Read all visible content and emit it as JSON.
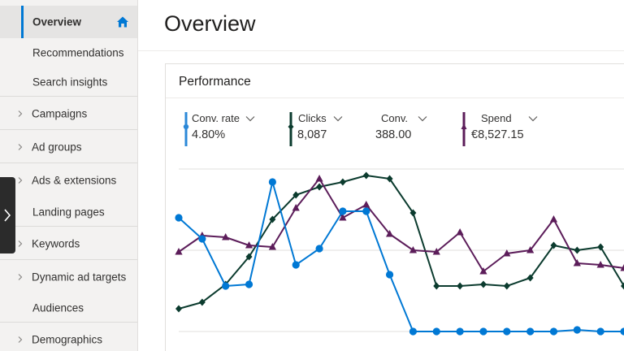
{
  "sidebar": {
    "items": [
      {
        "label": "Overview"
      },
      {
        "label": "Recommendations"
      },
      {
        "label": "Search insights"
      },
      {
        "label": "Campaigns"
      },
      {
        "label": "Ad groups"
      },
      {
        "label": "Ads & extensions"
      },
      {
        "label": "Landing pages"
      },
      {
        "label": "Keywords"
      },
      {
        "label": "Dynamic ad targets"
      },
      {
        "label": "Audiences"
      },
      {
        "label": "Demographics"
      }
    ]
  },
  "page": {
    "title": "Overview"
  },
  "performance": {
    "title": "Performance",
    "metrics": [
      {
        "label": "Conv. rate",
        "value": "4.80%",
        "color": "#2b88d8"
      },
      {
        "label": "Clicks",
        "value": "8,087",
        "color": "#0b3b2e"
      },
      {
        "label": "Conv.",
        "value": "388.00",
        "color": "#ffffff"
      },
      {
        "label": "Spend",
        "value": "€8,527.15",
        "color": "#5c1d5a"
      }
    ]
  },
  "chart_data": {
    "type": "line",
    "x": [
      1,
      2,
      3,
      4,
      5,
      6,
      7,
      8,
      9,
      10,
      11,
      12,
      13,
      14,
      15,
      16,
      17,
      18,
      19,
      20,
      21,
      22,
      23,
      24,
      25,
      26,
      27,
      28,
      29,
      30
    ],
    "grid": true,
    "series": [
      {
        "values": [
          0.7,
          0.57,
          0.28,
          0.29,
          0.92,
          0.41,
          0.51,
          0.74,
          0.74,
          0.35,
          0.0,
          0.0,
          0.0,
          0.0,
          0.0,
          0.0,
          0.0,
          0.01,
          0.0,
          0.0,
          0.0,
          0.0,
          0.0,
          0.0,
          0.0,
          0.0,
          0.0,
          0.0,
          0.0,
          0.0
        ],
        "color": "#0078d4",
        "marker": "circle"
      },
      {
        "values": [
          0.14,
          0.18,
          0.29,
          0.46,
          0.69,
          0.84,
          0.89,
          0.92,
          0.96,
          0.94,
          0.73,
          0.28,
          0.28,
          0.29,
          0.28,
          0.33,
          0.53,
          0.5,
          0.52,
          0.28,
          0.31,
          0.52,
          0.54,
          0.46,
          0.33,
          0.32,
          0.27,
          0.3,
          0.3,
          0.35
        ],
        "color": "#0b3b2e",
        "marker": "diamond"
      },
      {
        "values": [
          0.49,
          0.59,
          0.58,
          0.53,
          0.52,
          0.76,
          0.94,
          0.7,
          0.78,
          0.6,
          0.5,
          0.49,
          0.61,
          0.37,
          0.48,
          0.5,
          0.69,
          0.42,
          0.41,
          0.39,
          0.44,
          0.52,
          0.5,
          0.5,
          0.46,
          0.5,
          0.48,
          0.47,
          0.46,
          0.49
        ],
        "color": "#5c1d5a",
        "marker": "triangle"
      }
    ]
  }
}
